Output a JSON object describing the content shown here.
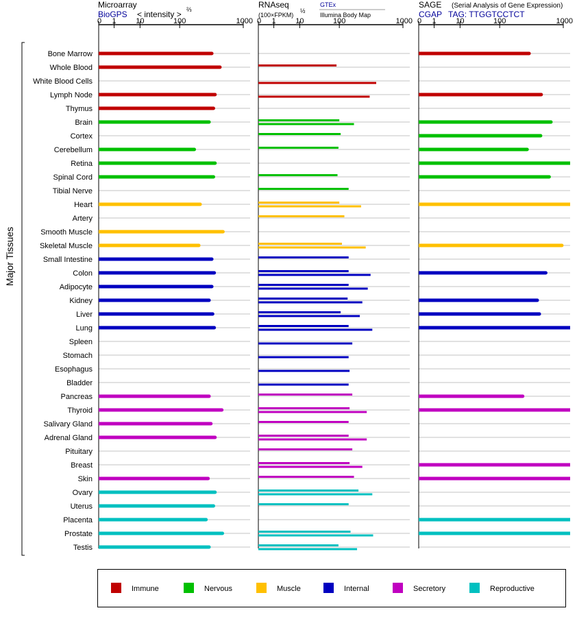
{
  "y_axis_label": "Major Tissues",
  "colors": {
    "immune": "#c00000",
    "nervous": "#00c000",
    "muscle": "#ffc000",
    "internal": "#0000c0",
    "secretory": "#c000c0",
    "reproductive": "#00c0c0",
    "link": "#000099"
  },
  "legend": [
    {
      "key": "immune",
      "label": "Immune"
    },
    {
      "key": "nervous",
      "label": "Nervous"
    },
    {
      "key": "muscle",
      "label": "Muscle"
    },
    {
      "key": "internal",
      "label": "Internal"
    },
    {
      "key": "secretory",
      "label": "Secretory"
    },
    {
      "key": "reproductive",
      "label": "Reproductive"
    }
  ],
  "panels": {
    "microarray": {
      "title": "Microarray",
      "subtitle_link": "BioGPS",
      "unit_label": "< intensity >",
      "unit_sup": "⅔",
      "ticks": [
        "0",
        "1",
        "10",
        "100",
        "1000"
      ]
    },
    "rnaseq": {
      "title": "RNAseq",
      "unit_label": "(100×FPKM)",
      "unit_sup": "½",
      "source1": "GTEx",
      "source2": "Illumina Body Map",
      "ticks": [
        "0",
        "1",
        "10",
        "100",
        "1000"
      ]
    },
    "sage": {
      "title": "SAGE",
      "title_note": "(Serial Analysis of Gene Expression)",
      "subtitle_link": "CGAP",
      "tag_label": "TAG: TTGGTCCTCT",
      "ticks": [
        "0",
        "1",
        "10",
        "100",
        "1000"
      ]
    }
  },
  "chart_data": {
    "type": "bar",
    "scale": "log",
    "xlim": [
      0,
      1000
    ],
    "tissues": [
      {
        "name": "Bone Marrow",
        "group": "immune",
        "microarray": 320,
        "gtex": null,
        "ibm": null,
        "sage": 290
      },
      {
        "name": "Whole Blood",
        "group": "immune",
        "microarray": 430,
        "gtex": 85,
        "ibm": null,
        "sage": null
      },
      {
        "name": "White Blood Cells",
        "group": "immune",
        "microarray": null,
        "gtex": null,
        "ibm": 380,
        "sage": null
      },
      {
        "name": "Lymph Node",
        "group": "immune",
        "microarray": 360,
        "gtex": null,
        "ibm": 300,
        "sage": 450
      },
      {
        "name": "Thymus",
        "group": "immune",
        "microarray": 340,
        "gtex": null,
        "ibm": null,
        "sage": null
      },
      {
        "name": "Brain",
        "group": "nervous",
        "microarray": 290,
        "gtex": 100,
        "ibm": 170,
        "sage": 640
      },
      {
        "name": "Cortex",
        "group": "nervous",
        "microarray": null,
        "gtex": 105,
        "ibm": null,
        "sage": 440
      },
      {
        "name": "Cerebellum",
        "group": "nervous",
        "microarray": 170,
        "gtex": 95,
        "ibm": null,
        "sage": 270
      },
      {
        "name": "Retina",
        "group": "nervous",
        "microarray": 360,
        "gtex": null,
        "ibm": null,
        "sage": 1000
      },
      {
        "name": "Spinal Cord",
        "group": "nervous",
        "microarray": 340,
        "gtex": 90,
        "ibm": null,
        "sage": 600
      },
      {
        "name": "Tibial Nerve",
        "group": "nervous",
        "microarray": null,
        "gtex": 140,
        "ibm": null,
        "sage": null
      },
      {
        "name": "Heart",
        "group": "muscle",
        "microarray": 210,
        "gtex": 100,
        "ibm": 220,
        "sage": 1000
      },
      {
        "name": "Artery",
        "group": "muscle",
        "microarray": null,
        "gtex": 120,
        "ibm": null,
        "sage": null
      },
      {
        "name": "Smooth Muscle",
        "group": "muscle",
        "microarray": 480,
        "gtex": null,
        "ibm": null,
        "sage": null
      },
      {
        "name": "Skeletal Muscle",
        "group": "muscle",
        "microarray": 200,
        "gtex": 110,
        "ibm": 260,
        "sage": 950
      },
      {
        "name": "Small Intestine",
        "group": "internal",
        "microarray": 320,
        "gtex": 140,
        "ibm": null,
        "sage": null
      },
      {
        "name": "Colon",
        "group": "internal",
        "microarray": 350,
        "gtex": 140,
        "ibm": 310,
        "sage": 530
      },
      {
        "name": "Adipocyte",
        "group": "internal",
        "microarray": 320,
        "gtex": 140,
        "ibm": 280,
        "sage": null
      },
      {
        "name": "Kidney",
        "group": "internal",
        "microarray": 290,
        "gtex": 135,
        "ibm": 230,
        "sage": 390
      },
      {
        "name": "Liver",
        "group": "internal",
        "microarray": 330,
        "gtex": 105,
        "ibm": 210,
        "sage": 420
      },
      {
        "name": "Lung",
        "group": "internal",
        "microarray": 350,
        "gtex": 140,
        "ibm": 330,
        "sage": 1000
      },
      {
        "name": "Spleen",
        "group": "internal",
        "microarray": null,
        "gtex": null,
        "ibm": 160,
        "sage": null
      },
      {
        "name": "Stomach",
        "group": "internal",
        "microarray": null,
        "gtex": null,
        "ibm": 140,
        "sage": null
      },
      {
        "name": "Esophagus",
        "group": "internal",
        "microarray": null,
        "gtex": null,
        "ibm": 145,
        "sage": null
      },
      {
        "name": "Bladder",
        "group": "internal",
        "microarray": null,
        "gtex": null,
        "ibm": 140,
        "sage": null
      },
      {
        "name": "Pancreas",
        "group": "secretory",
        "microarray": 290,
        "gtex": 160,
        "ibm": null,
        "sage": 230
      },
      {
        "name": "Thyroid",
        "group": "secretory",
        "microarray": 460,
        "gtex": 145,
        "ibm": 270,
        "sage": 1000
      },
      {
        "name": "Salivary Gland",
        "group": "secretory",
        "microarray": 310,
        "gtex": 140,
        "ibm": null,
        "sage": null
      },
      {
        "name": "Adrenal Gland",
        "group": "secretory",
        "microarray": 360,
        "gtex": 140,
        "ibm": 270,
        "sage": null
      },
      {
        "name": "Pituitary",
        "group": "secretory",
        "microarray": null,
        "gtex": 160,
        "ibm": null,
        "sage": null
      },
      {
        "name": "Breast",
        "group": "secretory",
        "microarray": null,
        "gtex": 145,
        "ibm": 230,
        "sage": 1000
      },
      {
        "name": "Skin",
        "group": "secretory",
        "microarray": 280,
        "gtex": 170,
        "ibm": null,
        "sage": 1000
      },
      {
        "name": "Ovary",
        "group": "reproductive",
        "microarray": 360,
        "gtex": 200,
        "ibm": 330,
        "sage": null
      },
      {
        "name": "Uterus",
        "group": "reproductive",
        "microarray": 340,
        "gtex": 140,
        "ibm": null,
        "sage": null
      },
      {
        "name": "Placenta",
        "group": "reproductive",
        "microarray": 260,
        "gtex": null,
        "ibm": null,
        "sage": 1000
      },
      {
        "name": "Prostate",
        "group": "reproductive",
        "microarray": 470,
        "gtex": 150,
        "ibm": 340,
        "sage": 1000
      },
      {
        "name": "Testis",
        "group": "reproductive",
        "microarray": 290,
        "gtex": 95,
        "ibm": 190,
        "sage": null
      }
    ]
  }
}
